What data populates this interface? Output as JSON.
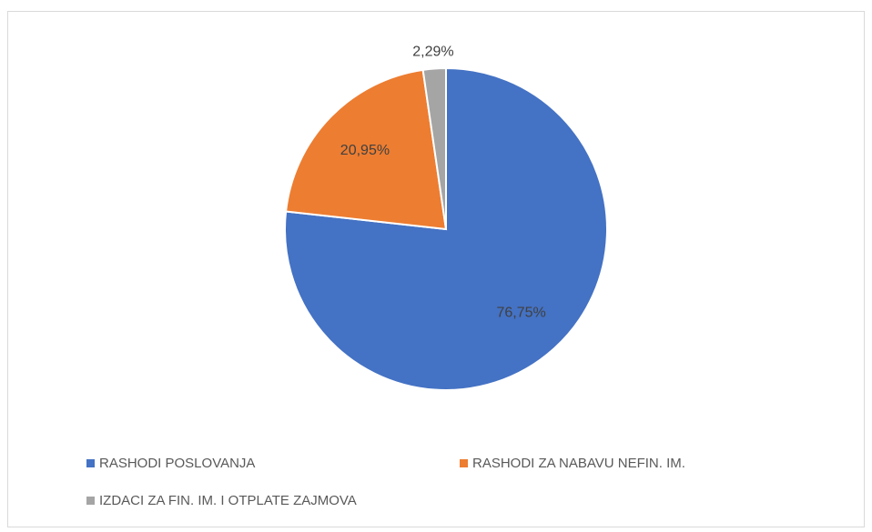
{
  "chart_data": {
    "type": "pie",
    "categories": [
      "RASHODI POSLOVANJA",
      "RASHODI ZA NABAVU NEFIN. IM.",
      "IZDACI ZA FIN. IM. I OTPLATE ZAJMOVA"
    ],
    "values": [
      76.75,
      20.95,
      2.29
    ],
    "value_labels": [
      "76,75%",
      "20,95%",
      "2,29%"
    ],
    "colors": [
      "#4472c4",
      "#ed7d31",
      "#a5a5a5"
    ]
  }
}
